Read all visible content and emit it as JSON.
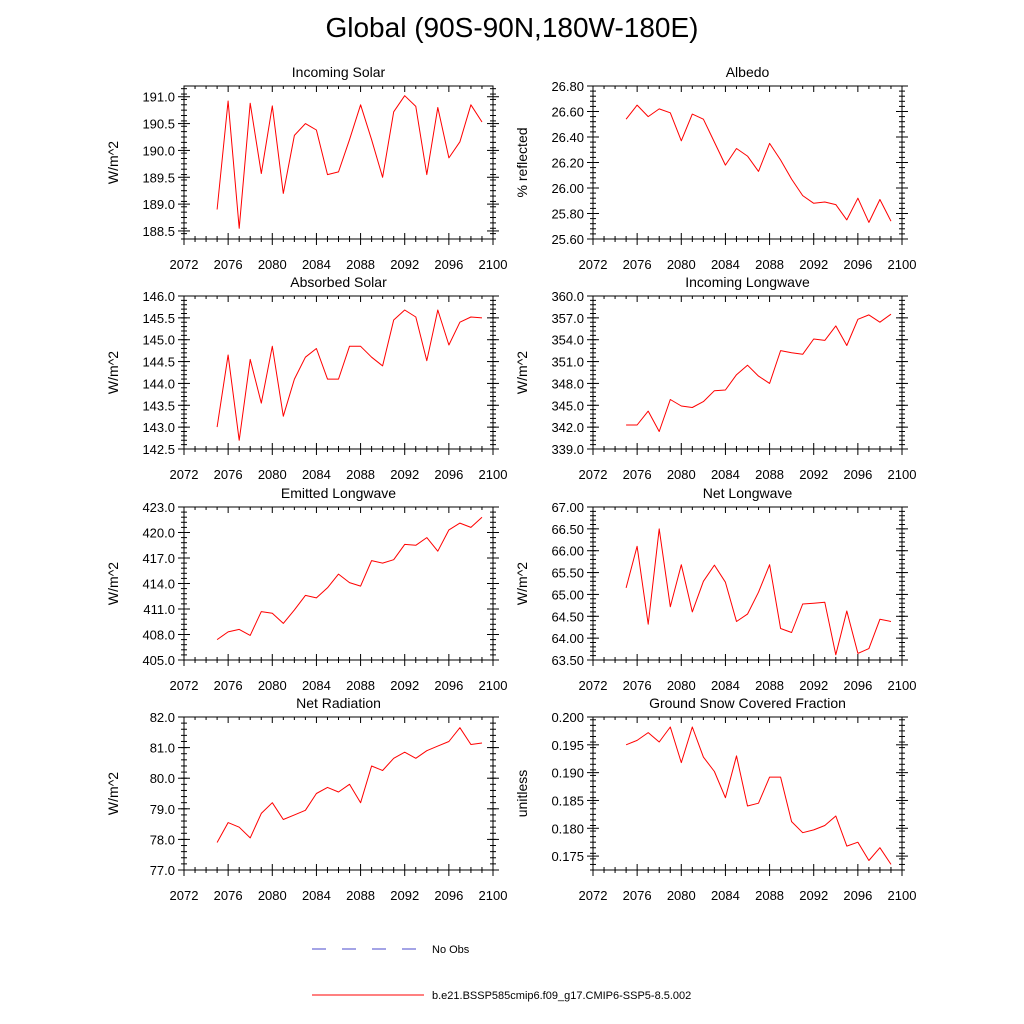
{
  "page": {
    "title": "Global (90S-90N,180W-180E)"
  },
  "legend": {
    "items": [
      {
        "label": "No Obs",
        "color": "#4a4acc",
        "dashed": true
      },
      {
        "label": "b.e21.BSSP585cmip6.f09_g17.CMIP6-SSP5-8.5.002",
        "color": "#ff0000",
        "dashed": false
      }
    ]
  },
  "chart_data": [
    {
      "type": "line",
      "title": "Incoming Solar",
      "ylabel": "W/m^2",
      "xlim": [
        2072,
        2100
      ],
      "xticks": [
        2072,
        2076,
        2080,
        2084,
        2088,
        2092,
        2096,
        2100
      ],
      "ylim": [
        188.35,
        191.2
      ],
      "yticks": [
        188.5,
        189.0,
        189.5,
        190.0,
        190.5,
        191.0
      ],
      "ytick_labels": [
        "188.5",
        "189.0",
        "189.5",
        "190.0",
        "190.5",
        "191.0"
      ],
      "series": [
        {
          "color": "#ff0000",
          "x": [
            2075,
            2076,
            2077,
            2078,
            2079,
            2080,
            2081,
            2082,
            2083,
            2084,
            2085,
            2086,
            2087,
            2088,
            2089,
            2090,
            2091,
            2092,
            2093,
            2094,
            2095,
            2096,
            2097,
            2098,
            2099
          ],
          "y": [
            188.9,
            190.92,
            188.55,
            190.88,
            189.57,
            190.83,
            189.2,
            190.28,
            190.5,
            190.38,
            189.55,
            189.6,
            190.2,
            190.85,
            190.2,
            189.5,
            190.72,
            191.02,
            190.82,
            189.55,
            190.8,
            189.86,
            190.16,
            190.85,
            190.53
          ]
        }
      ]
    },
    {
      "type": "line",
      "title": "Albedo",
      "ylabel": "% reflected",
      "xlim": [
        2072,
        2100
      ],
      "xticks": [
        2072,
        2076,
        2080,
        2084,
        2088,
        2092,
        2096,
        2100
      ],
      "ylim": [
        25.6,
        26.8
      ],
      "yticks": [
        25.6,
        25.8,
        26.0,
        26.2,
        26.4,
        26.6,
        26.8
      ],
      "ytick_labels": [
        "25.60",
        "25.80",
        "26.00",
        "26.20",
        "26.40",
        "26.60",
        "26.80"
      ],
      "series": [
        {
          "color": "#ff0000",
          "x": [
            2075,
            2076,
            2077,
            2078,
            2079,
            2080,
            2081,
            2082,
            2083,
            2084,
            2085,
            2086,
            2087,
            2088,
            2089,
            2090,
            2091,
            2092,
            2093,
            2094,
            2095,
            2096,
            2097,
            2098,
            2099
          ],
          "y": [
            26.54,
            26.65,
            26.56,
            26.62,
            26.59,
            26.37,
            26.58,
            26.54,
            26.36,
            26.18,
            26.31,
            26.25,
            26.13,
            26.35,
            26.22,
            26.07,
            25.94,
            25.88,
            25.89,
            25.87,
            25.75,
            25.92,
            25.73,
            25.91,
            25.74
          ]
        }
      ]
    },
    {
      "type": "line",
      "title": "Absorbed Solar",
      "ylabel": "W/m^2",
      "xlim": [
        2072,
        2100
      ],
      "xticks": [
        2072,
        2076,
        2080,
        2084,
        2088,
        2092,
        2096,
        2100
      ],
      "ylim": [
        142.5,
        146.0
      ],
      "yticks": [
        142.5,
        143.0,
        143.5,
        144.0,
        144.5,
        145.0,
        145.5,
        146.0
      ],
      "ytick_labels": [
        "142.5",
        "143.0",
        "143.5",
        "144.0",
        "144.5",
        "145.0",
        "145.5",
        "146.0"
      ],
      "series": [
        {
          "color": "#ff0000",
          "x": [
            2075,
            2076,
            2077,
            2078,
            2079,
            2080,
            2081,
            2082,
            2083,
            2084,
            2085,
            2086,
            2087,
            2088,
            2089,
            2090,
            2091,
            2092,
            2093,
            2094,
            2095,
            2096,
            2097,
            2098,
            2099
          ],
          "y": [
            143.0,
            144.65,
            142.7,
            144.55,
            143.55,
            144.85,
            143.25,
            144.1,
            144.6,
            144.8,
            144.1,
            144.1,
            144.85,
            144.85,
            144.6,
            144.4,
            145.45,
            145.68,
            145.52,
            144.52,
            145.68,
            144.88,
            145.4,
            145.52,
            145.5
          ]
        }
      ]
    },
    {
      "type": "line",
      "title": "Incoming Longwave",
      "ylabel": "W/m^2",
      "xlim": [
        2072,
        2100
      ],
      "xticks": [
        2072,
        2076,
        2080,
        2084,
        2088,
        2092,
        2096,
        2100
      ],
      "ylim": [
        339.0,
        360.0
      ],
      "yticks": [
        339,
        342,
        345,
        348,
        351,
        354,
        357,
        360
      ],
      "ytick_labels": [
        "339.0",
        "342.0",
        "345.0",
        "348.0",
        "351.0",
        "354.0",
        "357.0",
        "360.0"
      ],
      "series": [
        {
          "color": "#ff0000",
          "x": [
            2075,
            2076,
            2077,
            2078,
            2079,
            2080,
            2081,
            2082,
            2083,
            2084,
            2085,
            2086,
            2087,
            2088,
            2089,
            2090,
            2091,
            2092,
            2093,
            2094,
            2095,
            2096,
            2097,
            2098,
            2099
          ],
          "y": [
            342.3,
            342.3,
            344.2,
            341.4,
            345.8,
            344.9,
            344.7,
            345.5,
            347.0,
            347.1,
            349.2,
            350.5,
            349.0,
            348.0,
            352.5,
            352.2,
            352.0,
            354.1,
            353.9,
            355.9,
            353.2,
            356.8,
            357.4,
            356.4,
            357.5
          ]
        }
      ]
    },
    {
      "type": "line",
      "title": "Emitted Longwave",
      "ylabel": "W/m^2",
      "xlim": [
        2072,
        2100
      ],
      "xticks": [
        2072,
        2076,
        2080,
        2084,
        2088,
        2092,
        2096,
        2100
      ],
      "ylim": [
        405.0,
        423.0
      ],
      "yticks": [
        405,
        408,
        411,
        414,
        417,
        420,
        423
      ],
      "ytick_labels": [
        "405.0",
        "408.0",
        "411.0",
        "414.0",
        "417.0",
        "420.0",
        "423.0"
      ],
      "series": [
        {
          "color": "#ff0000",
          "x": [
            2075,
            2076,
            2077,
            2078,
            2079,
            2080,
            2081,
            2082,
            2083,
            2084,
            2085,
            2086,
            2087,
            2088,
            2089,
            2090,
            2091,
            2092,
            2093,
            2094,
            2095,
            2096,
            2097,
            2098,
            2099
          ],
          "y": [
            407.4,
            408.3,
            408.6,
            407.9,
            410.7,
            410.5,
            409.3,
            410.9,
            412.6,
            412.3,
            413.5,
            415.1,
            414.1,
            413.7,
            416.7,
            416.4,
            416.8,
            418.6,
            418.5,
            419.4,
            417.8,
            420.3,
            421.1,
            420.6,
            421.8
          ]
        }
      ]
    },
    {
      "type": "line",
      "title": "Net Longwave",
      "ylabel": "W/m^2",
      "xlim": [
        2072,
        2100
      ],
      "xticks": [
        2072,
        2076,
        2080,
        2084,
        2088,
        2092,
        2096,
        2100
      ],
      "ylim": [
        63.5,
        67.0
      ],
      "yticks": [
        63.5,
        64.0,
        64.5,
        65.0,
        65.5,
        66.0,
        66.5,
        67.0
      ],
      "ytick_labels": [
        "63.50",
        "64.00",
        "64.50",
        "65.00",
        "65.50",
        "66.00",
        "66.50",
        "67.00"
      ],
      "series": [
        {
          "color": "#ff0000",
          "x": [
            2075,
            2076,
            2077,
            2078,
            2079,
            2080,
            2081,
            2082,
            2083,
            2084,
            2085,
            2086,
            2087,
            2088,
            2089,
            2090,
            2091,
            2092,
            2093,
            2094,
            2095,
            2096,
            2097,
            2098,
            2099
          ],
          "y": [
            65.15,
            66.1,
            64.32,
            66.5,
            64.72,
            65.68,
            64.6,
            65.3,
            65.67,
            65.28,
            64.38,
            64.55,
            65.05,
            65.68,
            64.22,
            64.13,
            64.78,
            64.8,
            64.82,
            63.62,
            64.62,
            63.65,
            63.76,
            64.43,
            64.38
          ]
        }
      ]
    },
    {
      "type": "line",
      "title": "Net Radiation",
      "ylabel": "W/m^2",
      "xlim": [
        2072,
        2100
      ],
      "xticks": [
        2072,
        2076,
        2080,
        2084,
        2088,
        2092,
        2096,
        2100
      ],
      "ylim": [
        77.0,
        82.0
      ],
      "yticks": [
        77,
        78,
        79,
        80,
        81,
        82
      ],
      "ytick_labels": [
        "77.0",
        "78.0",
        "79.0",
        "80.0",
        "81.0",
        "82.0"
      ],
      "series": [
        {
          "color": "#ff0000",
          "x": [
            2075,
            2076,
            2077,
            2078,
            2079,
            2080,
            2081,
            2082,
            2083,
            2084,
            2085,
            2086,
            2087,
            2088,
            2089,
            2090,
            2091,
            2092,
            2093,
            2094,
            2095,
            2096,
            2097,
            2098,
            2099
          ],
          "y": [
            77.9,
            78.55,
            78.4,
            78.05,
            78.85,
            79.2,
            78.65,
            78.8,
            78.95,
            79.5,
            79.7,
            79.55,
            79.8,
            79.2,
            80.4,
            80.25,
            80.65,
            80.85,
            80.65,
            80.9,
            81.05,
            81.2,
            81.65,
            81.1,
            81.15
          ]
        }
      ]
    },
    {
      "type": "line",
      "title": "Ground Snow Covered Fraction",
      "ylabel": "unitless",
      "xlim": [
        2072,
        2100
      ],
      "xticks": [
        2072,
        2076,
        2080,
        2084,
        2088,
        2092,
        2096,
        2100
      ],
      "ylim": [
        0.1725,
        0.2
      ],
      "yticks": [
        0.175,
        0.18,
        0.185,
        0.19,
        0.195,
        0.2
      ],
      "ytick_labels": [
        "0.175",
        "0.180",
        "0.185",
        "0.190",
        "0.195",
        "0.200"
      ],
      "series": [
        {
          "color": "#ff0000",
          "x": [
            2075,
            2076,
            2077,
            2078,
            2079,
            2080,
            2081,
            2082,
            2083,
            2084,
            2085,
            2086,
            2087,
            2088,
            2089,
            2090,
            2091,
            2092,
            2093,
            2094,
            2095,
            2096,
            2097,
            2098,
            2099
          ],
          "y": [
            0.195,
            0.1958,
            0.1972,
            0.1955,
            0.1982,
            0.1918,
            0.1982,
            0.1928,
            0.1902,
            0.1855,
            0.193,
            0.184,
            0.1845,
            0.1892,
            0.1892,
            0.1812,
            0.1792,
            0.1797,
            0.1805,
            0.1822,
            0.1768,
            0.1775,
            0.1742,
            0.1765,
            0.1735
          ]
        }
      ]
    }
  ]
}
